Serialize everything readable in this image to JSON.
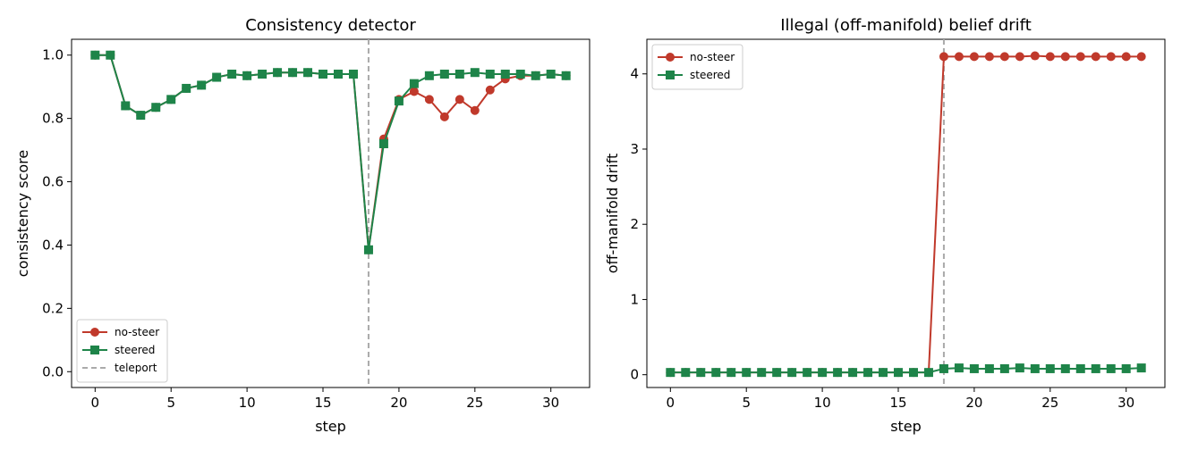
{
  "chart_data": [
    {
      "type": "line",
      "title": "Consistency detector",
      "xlabel": "step",
      "ylabel": "consistency score",
      "xlim": [
        -1.55,
        32.55
      ],
      "ylim": [
        -0.05,
        1.05
      ],
      "xticks": [
        "0",
        "5",
        "10",
        "15",
        "20",
        "25",
        "30"
      ],
      "yticks": [
        "0.0",
        "0.2",
        "0.4",
        "0.6",
        "0.8",
        "1.0"
      ],
      "x": [
        0,
        1,
        2,
        3,
        4,
        5,
        6,
        7,
        8,
        9,
        10,
        11,
        12,
        13,
        14,
        15,
        16,
        17,
        18,
        19,
        20,
        21,
        22,
        23,
        24,
        25,
        26,
        27,
        28,
        29,
        30,
        31
      ],
      "series": [
        {
          "name": "no-steer",
          "color": "#c0392b",
          "marker": "circle",
          "values": [
            1.0,
            1.0,
            0.84,
            0.81,
            0.835,
            0.86,
            0.895,
            0.905,
            0.93,
            0.94,
            0.935,
            0.94,
            0.945,
            0.945,
            0.945,
            0.94,
            0.94,
            0.94,
            0.385,
            0.735,
            0.86,
            0.885,
            0.86,
            0.805,
            0.86,
            0.825,
            0.89,
            0.925,
            0.935,
            0.935,
            0.94,
            0.935
          ]
        },
        {
          "name": "steered",
          "color": "#1e8449",
          "marker": "square",
          "values": [
            1.0,
            1.0,
            0.84,
            0.81,
            0.835,
            0.86,
            0.895,
            0.905,
            0.93,
            0.94,
            0.935,
            0.94,
            0.945,
            0.945,
            0.945,
            0.94,
            0.94,
            0.94,
            0.385,
            0.72,
            0.855,
            0.91,
            0.935,
            0.94,
            0.94,
            0.945,
            0.94,
            0.94,
            0.94,
            0.935,
            0.94,
            0.935
          ]
        }
      ],
      "vline": {
        "x": 18,
        "name": "teleport",
        "color": "#aaaaaa"
      },
      "legend": {
        "position": "lower-left",
        "entries": [
          "no-steer",
          "steered",
          "teleport"
        ]
      }
    },
    {
      "type": "line",
      "title": "Illegal (off-manifold) belief drift",
      "xlabel": "step",
      "ylabel": "off-manifold drift",
      "xlim": [
        -1.55,
        32.55
      ],
      "ylim": [
        -0.17,
        4.46
      ],
      "xticks": [
        "0",
        "5",
        "10",
        "15",
        "20",
        "25",
        "30"
      ],
      "yticks": [
        "0",
        "1",
        "2",
        "3",
        "4"
      ],
      "x": [
        0,
        1,
        2,
        3,
        4,
        5,
        6,
        7,
        8,
        9,
        10,
        11,
        12,
        13,
        14,
        15,
        16,
        17,
        18,
        19,
        20,
        21,
        22,
        23,
        24,
        25,
        26,
        27,
        28,
        29,
        30,
        31
      ],
      "series": [
        {
          "name": "no-steer",
          "color": "#c0392b",
          "marker": "circle",
          "values": [
            0.03,
            0.03,
            0.03,
            0.03,
            0.03,
            0.03,
            0.03,
            0.03,
            0.03,
            0.03,
            0.03,
            0.03,
            0.03,
            0.03,
            0.03,
            0.03,
            0.03,
            0.03,
            4.23,
            4.23,
            4.23,
            4.23,
            4.23,
            4.23,
            4.24,
            4.23,
            4.23,
            4.23,
            4.23,
            4.23,
            4.23,
            4.23
          ]
        },
        {
          "name": "steered",
          "color": "#1e8449",
          "marker": "square",
          "values": [
            0.03,
            0.03,
            0.03,
            0.03,
            0.03,
            0.03,
            0.03,
            0.03,
            0.03,
            0.03,
            0.03,
            0.03,
            0.03,
            0.03,
            0.03,
            0.03,
            0.03,
            0.03,
            0.08,
            0.09,
            0.08,
            0.08,
            0.08,
            0.09,
            0.08,
            0.08,
            0.08,
            0.08,
            0.08,
            0.08,
            0.08,
            0.09
          ]
        }
      ],
      "vline": {
        "x": 18,
        "color": "#aaaaaa"
      },
      "legend": {
        "position": "upper-left",
        "entries": [
          "no-steer",
          "steered"
        ]
      }
    }
  ]
}
